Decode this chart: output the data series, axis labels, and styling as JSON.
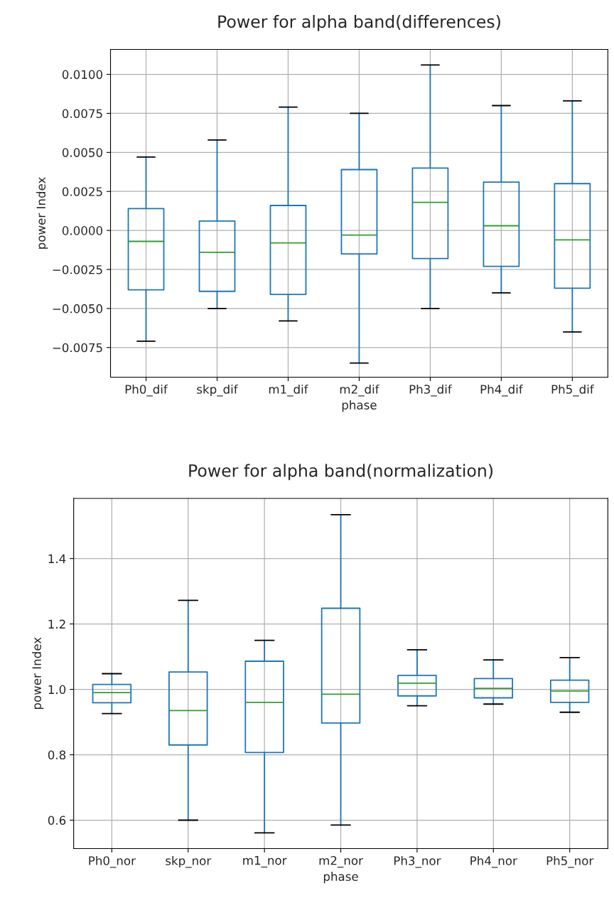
{
  "chart_data": [
    {
      "type": "box",
      "title": "Power for alpha band(differences)",
      "xlabel": "phase",
      "ylabel": "power Index",
      "categories": [
        "Ph0_dif",
        "skp_dif",
        "m1_dif",
        "m2_dif",
        "Ph3_dif",
        "Ph4_dif",
        "Ph5_dif"
      ],
      "boxes": [
        {
          "low": -0.0071,
          "q1": -0.0038,
          "median": -0.0007,
          "q3": 0.0014,
          "high": 0.0047
        },
        {
          "low": -0.005,
          "q1": -0.0039,
          "median": -0.0014,
          "q3": 0.0006,
          "high": 0.0058
        },
        {
          "low": -0.0058,
          "q1": -0.0041,
          "median": -0.0008,
          "q3": 0.0016,
          "high": 0.0079
        },
        {
          "low": -0.0085,
          "q1": -0.0015,
          "median": -0.0003,
          "q3": 0.0039,
          "high": 0.0075
        },
        {
          "low": -0.005,
          "q1": -0.0018,
          "median": 0.0018,
          "q3": 0.004,
          "high": 0.0106
        },
        {
          "low": -0.004,
          "q1": -0.0023,
          "median": 0.0003,
          "q3": 0.0031,
          "high": 0.008
        },
        {
          "low": -0.0065,
          "q1": -0.0037,
          "median": -0.0006,
          "q3": 0.003,
          "high": 0.0083
        }
      ],
      "color": "#1f77b4",
      "ylim": [
        -0.0094,
        0.0116
      ],
      "yticks": [
        {
          "value": -0.0075,
          "label": "−0.0075"
        },
        {
          "value": -0.005,
          "label": "−0.0050"
        },
        {
          "value": -0.0025,
          "label": "−0.0025"
        },
        {
          "value": 0,
          "label": "0.0000"
        },
        {
          "value": 0.0025,
          "label": "0.0025"
        },
        {
          "value": 0.005,
          "label": "0.0050"
        },
        {
          "value": 0.0075,
          "label": "0.0075"
        },
        {
          "value": 0.01,
          "label": "0.0100"
        }
      ],
      "grid": true
    },
    {
      "type": "box",
      "title": "Power for alpha band(normalization)",
      "xlabel": "phase",
      "ylabel": "power Index",
      "categories": [
        "Ph0_nor",
        "skp_nor",
        "m1_nor",
        "m2_nor",
        "Ph3_nor",
        "Ph4_nor",
        "Ph5_nor"
      ],
      "boxes": [
        {
          "low": 0.926,
          "q1": 0.959,
          "median": 0.99,
          "q3": 1.015,
          "high": 1.048
        },
        {
          "low": 0.6,
          "q1": 0.83,
          "median": 0.935,
          "q3": 1.053,
          "high": 1.272
        },
        {
          "low": 0.561,
          "q1": 0.807,
          "median": 0.96,
          "q3": 1.086,
          "high": 1.15
        },
        {
          "low": 0.585,
          "q1": 0.897,
          "median": 0.985,
          "q3": 1.248,
          "high": 1.534
        },
        {
          "low": 0.95,
          "q1": 0.98,
          "median": 1.019,
          "q3": 1.043,
          "high": 1.121
        },
        {
          "low": 0.955,
          "q1": 0.974,
          "median": 1.003,
          "q3": 1.033,
          "high": 1.09
        },
        {
          "low": 0.93,
          "q1": 0.96,
          "median": 0.995,
          "q3": 1.028,
          "high": 1.097
        }
      ],
      "color": "#1f77b4",
      "ylim": [
        0.513,
        1.584
      ],
      "yticks": [
        0.6,
        0.8,
        {
          "value": 1.0,
          "label": "1.0"
        },
        1.2,
        1.4
      ],
      "grid": true
    }
  ]
}
